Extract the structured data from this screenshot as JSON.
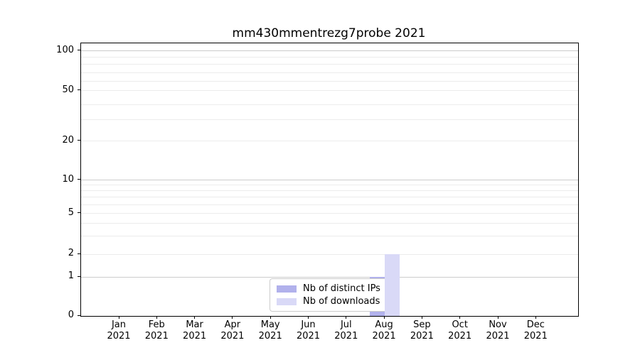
{
  "title": "mm430mmentrezg7probe 2021",
  "chart_data": {
    "type": "bar",
    "title": "mm430mmentrezg7probe 2021",
    "x_months": [
      "Jan",
      "Feb",
      "Mar",
      "Apr",
      "May",
      "Jun",
      "Jul",
      "Aug",
      "Sep",
      "Oct",
      "Nov",
      "Dec"
    ],
    "x_year": "2021",
    "series": [
      {
        "name": "Nb of distinct IPs",
        "color": "#b1b1ec",
        "values": [
          0,
          0,
          0,
          0,
          0,
          0,
          0,
          1,
          0,
          0,
          0,
          0
        ]
      },
      {
        "name": "Nb of downloads",
        "color": "#d9d9f7",
        "values": [
          0,
          0,
          0,
          0,
          0,
          0,
          0,
          2,
          0,
          0,
          0,
          0
        ]
      }
    ],
    "y_axis": {
      "scale": "symlog",
      "ylim": [
        0,
        100
      ],
      "tick_labels": [
        0,
        1,
        2,
        5,
        10,
        20,
        50,
        100
      ],
      "major_gridlines": [
        1,
        10,
        100
      ],
      "calibration": [
        [
          0,
          0
        ],
        [
          1,
          0.1432
        ],
        [
          2,
          0.2266
        ],
        [
          3,
          0.293
        ],
        [
          4,
          0.3398
        ],
        [
          5,
          0.3763
        ],
        [
          6,
          0.4076
        ],
        [
          7,
          0.4362
        ],
        [
          8,
          0.4596
        ],
        [
          9,
          0.4805
        ],
        [
          10,
          0.4987
        ],
        [
          20,
          0.6419
        ],
        [
          30,
          0.7201
        ],
        [
          40,
          0.7747
        ],
        [
          50,
          0.8268
        ],
        [
          60,
          0.8607
        ],
        [
          70,
          0.8919
        ],
        [
          80,
          0.9232
        ],
        [
          90,
          0.9492
        ],
        [
          100,
          0.9727
        ]
      ]
    },
    "legend": {
      "position": "lower center",
      "entries": [
        "Nb of distinct IPs",
        "Nb of downloads"
      ]
    },
    "grid": "horizontal"
  },
  "colors": {
    "background": "#ffffff",
    "spine": "#000000",
    "text": "#000000",
    "grid_major": "#cccccc",
    "grid_minor": "#ececec",
    "legend_border": "#cccccc",
    "bar_distinct_ips": "#b1b1ec",
    "bar_downloads": "#d9d9f7"
  }
}
